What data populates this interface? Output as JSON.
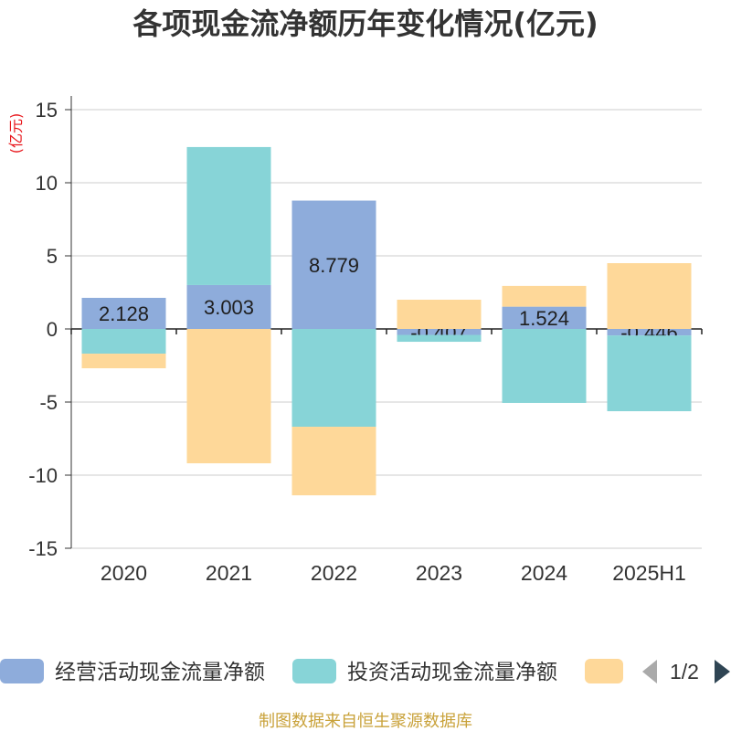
{
  "chart_data": {
    "type": "bar",
    "stacked": true,
    "title": "各项现金流净额历年变化情况(亿元)",
    "ylabel": "(亿元)",
    "ylim": [
      -15,
      15
    ],
    "yticks": [
      15,
      10,
      5,
      0,
      -5,
      -10,
      -15
    ],
    "grid": true,
    "legend_position": "bottom",
    "categories": [
      "2020",
      "2021",
      "2022",
      "2023",
      "2024",
      "2025H1"
    ],
    "series": [
      {
        "name": "经营活动现金流量净额",
        "color": "#8eacdb",
        "data_labels": true,
        "values": [
          2.128,
          3.003,
          8.779,
          -0.407,
          1.524,
          -0.446
        ]
      },
      {
        "name": "投资活动现金流量净额",
        "color": "#87d4d7",
        "data_labels": false,
        "values": [
          -1.69,
          9.44,
          -6.69,
          -0.47,
          -5.06,
          -5.18
        ]
      },
      {
        "color": "#fed899",
        "data_labels": false,
        "values": [
          -1.0,
          -9.19,
          -4.69,
          2.0,
          1.42,
          4.5
        ]
      }
    ]
  },
  "legend": {
    "page": "1/2"
  },
  "footer": "制图数据来自恒生聚源数据库"
}
